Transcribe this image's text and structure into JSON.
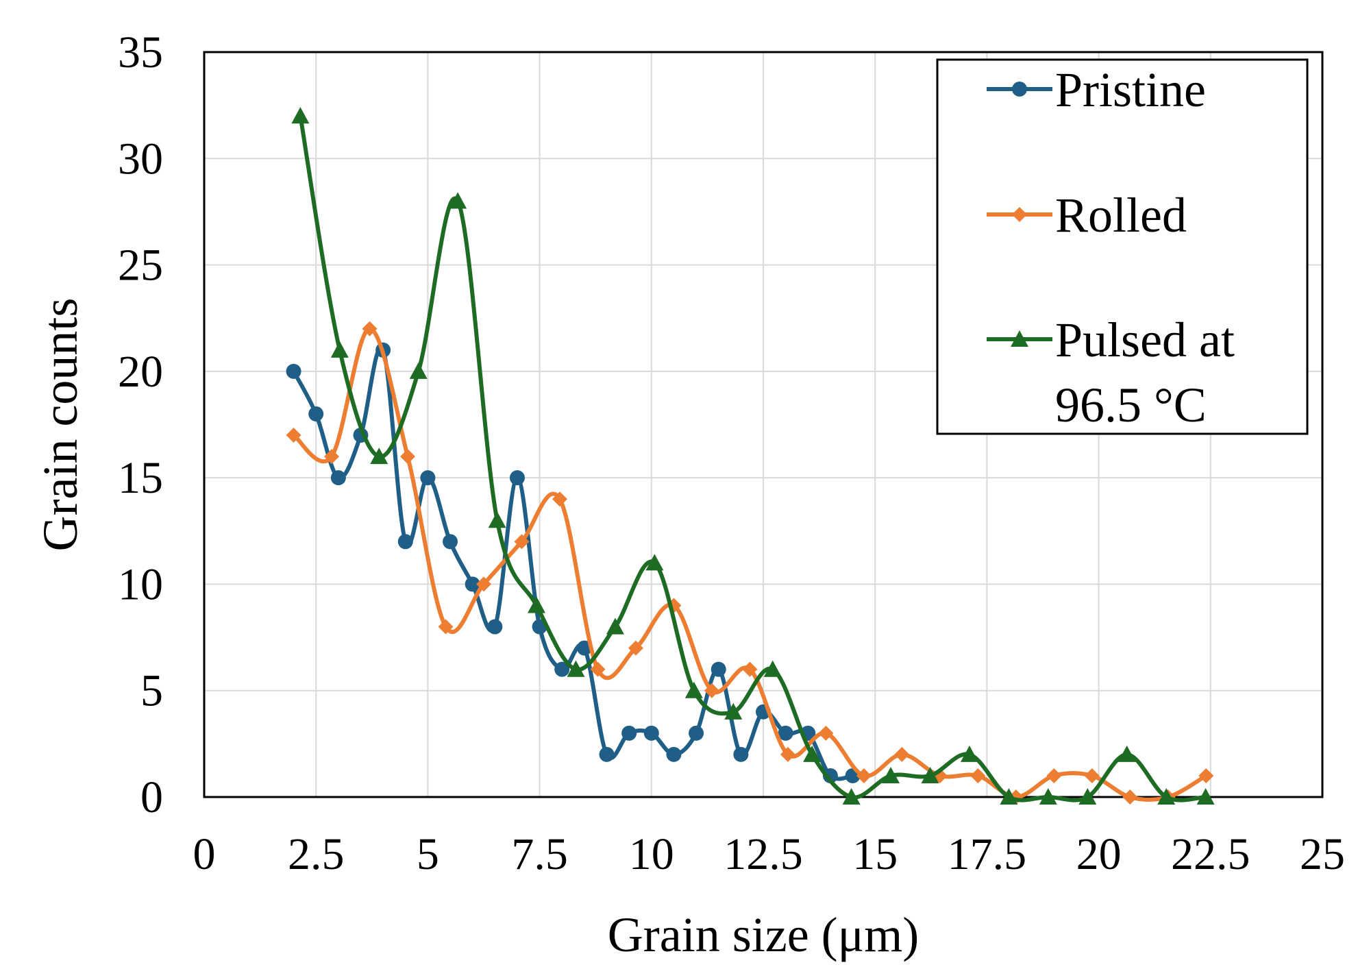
{
  "chart_data": {
    "type": "line",
    "title": "",
    "xlabel": "Grain size (μm)",
    "ylabel": "Grain counts",
    "xlim": [
      0,
      25
    ],
    "ylim": [
      0,
      35
    ],
    "xticks": [
      0,
      2.5,
      5,
      7.5,
      10,
      12.5,
      15,
      17.5,
      20,
      22.5,
      25
    ],
    "xtick_labels": [
      "0",
      "2.5",
      "5",
      "7.5",
      "10",
      "12.5",
      "15",
      "17.5",
      "20",
      "22.5",
      "25"
    ],
    "yticks": [
      0,
      5,
      10,
      15,
      20,
      25,
      30,
      35
    ],
    "ytick_labels": [
      "0",
      "5",
      "10",
      "15",
      "20",
      "25",
      "30",
      "35"
    ],
    "grid": true,
    "smooth": true,
    "legend_position": "top-right",
    "series": [
      {
        "name": "Pristine",
        "color": "#1f5e87",
        "marker": "circle",
        "x": [
          2,
          2.5,
          3,
          3.5,
          4,
          4.5,
          5,
          5.5,
          6,
          6.5,
          7,
          7.5,
          8,
          8.5,
          9,
          9.5,
          10,
          10.5,
          11,
          11.5,
          12,
          12.5,
          13,
          13.5,
          14,
          14.5
        ],
        "y": [
          20,
          18,
          15,
          17,
          21,
          12,
          15,
          12,
          10,
          8,
          15,
          8,
          6,
          7,
          2,
          3,
          3,
          2,
          3,
          6,
          2,
          4,
          3,
          3,
          1,
          1
        ]
      },
      {
        "name": "Rolled",
        "color": "#ed7d31",
        "marker": "diamond",
        "x": [
          2,
          2.85,
          3.7,
          4.55,
          5.4,
          6.25,
          7.1,
          7.95,
          8.8,
          9.65,
          10.5,
          11.35,
          12.2,
          13.05,
          13.9,
          14.75,
          15.6,
          16.45,
          17.3,
          18.15,
          19,
          19.85,
          20.7,
          21.55,
          22.4
        ],
        "y": [
          17,
          16,
          22,
          16,
          8,
          10,
          12,
          14,
          6,
          7,
          9,
          5,
          6,
          2,
          3,
          1,
          2,
          1,
          1,
          0,
          1,
          1,
          0,
          0,
          1
        ]
      },
      {
        "name": "Pulsed at 96.5 °C",
        "color": "#1e6b24",
        "marker": "triangle",
        "x": [
          2.15,
          3.03,
          3.91,
          4.79,
          5.67,
          6.55,
          7.43,
          8.31,
          9.19,
          10.07,
          10.95,
          11.83,
          12.71,
          13.59,
          14.47,
          15.35,
          16.23,
          17.11,
          17.99,
          18.87,
          19.75,
          20.63,
          21.51,
          22.39
        ],
        "y": [
          32,
          21,
          16,
          20,
          28,
          13,
          9,
          6,
          8,
          11,
          5,
          4,
          6,
          2,
          0,
          1,
          1,
          2,
          0,
          0,
          0,
          2,
          0,
          0
        ]
      }
    ]
  },
  "legend": {
    "items": [
      {
        "lines": [
          "Pristine"
        ]
      },
      {
        "lines": [
          "Rolled"
        ]
      },
      {
        "lines": [
          "Pulsed at",
          "96.5 °C"
        ]
      }
    ]
  }
}
